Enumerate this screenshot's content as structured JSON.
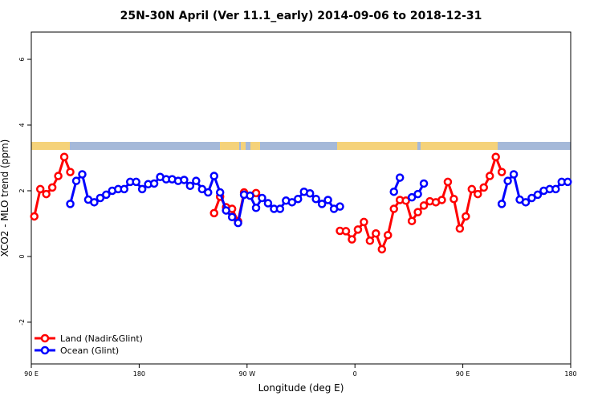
{
  "chart_data": {
    "type": "line",
    "title": "25N-30N April (Ver 11.1_early)   2014-09-06 to 2018-12-31",
    "x_label": "Longitude (deg E)",
    "y_label": "XCO2 - MLO trend (ppm)",
    "xlim": [
      90,
      540
    ],
    "ylim": [
      -3.27,
      6.83
    ],
    "xticks": [
      {
        "value": 90,
        "label": "90 E"
      },
      180,
      {
        "value": 270,
        "label": "90 W"
      },
      {
        "value": 360,
        "label": "0"
      },
      {
        "value": 450,
        "label": "90 E"
      },
      {
        "value": 540,
        "label": "180"
      }
    ],
    "yticks": [
      -2,
      0,
      2,
      4,
      6
    ],
    "legend": "bottom-left",
    "x": [
      92.5,
      97.5,
      102.5,
      107.5,
      112.5,
      117.5,
      122.5,
      127.5,
      132.5,
      137.5,
      142.5,
      147.5,
      152.5,
      157.5,
      162.5,
      167.5,
      172.5,
      177.5,
      182.5,
      187.5,
      192.5,
      197.5,
      202.5,
      207.5,
      212.5,
      217.5,
      222.5,
      227.5,
      232.5,
      237.5,
      242.5,
      247.5,
      252.5,
      257.5,
      262.5,
      267.5,
      272.5,
      277.5,
      282.5,
      287.5,
      292.5,
      297.5,
      302.5,
      307.5,
      312.5,
      317.5,
      322.5,
      327.5,
      332.5,
      337.5,
      342.5,
      347.5,
      352.5,
      357.5,
      362.5,
      367.5,
      372.5,
      377.5,
      382.5,
      387.5,
      392.5,
      397.5,
      402.5,
      407.5,
      412.5,
      417.5,
      422.5,
      427.5,
      432.5,
      437.5,
      442.5,
      447.5,
      452.5,
      457.5,
      462.5,
      467.5,
      472.5,
      477.5,
      482.5,
      487.5,
      492.5,
      497.5,
      502.5,
      507.5,
      512.5,
      517.5,
      522.5,
      527.5,
      532.5,
      537.5
    ],
    "series": [
      {
        "name": "Land (Nadir&Glint)",
        "color": "#ff0000",
        "values": [
          1.22,
          2.05,
          1.9,
          2.1,
          2.45,
          3.03,
          2.57,
          null,
          null,
          null,
          null,
          null,
          null,
          null,
          null,
          null,
          null,
          null,
          null,
          null,
          null,
          null,
          null,
          null,
          null,
          null,
          null,
          null,
          null,
          null,
          1.32,
          1.82,
          1.5,
          1.45,
          1.07,
          1.95,
          null,
          1.93,
          null,
          null,
          null,
          null,
          null,
          null,
          null,
          null,
          null,
          null,
          null,
          null,
          null,
          0.78,
          0.77,
          0.52,
          0.82,
          1.05,
          0.48,
          0.7,
          0.22,
          0.65,
          1.45,
          1.72,
          1.7,
          1.08,
          1.35,
          1.55,
          1.68,
          1.65,
          1.72,
          2.27,
          1.75,
          0.85,
          1.22,
          2.05,
          1.9,
          2.1,
          2.45,
          3.03,
          2.57,
          null,
          null,
          null,
          null,
          null,
          null,
          null,
          null,
          null,
          null,
          null
        ]
      },
      {
        "name": "Ocean (Glint)",
        "color": "#0000ff",
        "values": [
          null,
          null,
          null,
          null,
          null,
          null,
          1.6,
          2.3,
          2.5,
          1.73,
          1.65,
          1.78,
          1.88,
          2.0,
          2.05,
          2.05,
          2.27,
          2.27,
          2.05,
          2.2,
          2.22,
          2.42,
          2.35,
          2.35,
          2.3,
          2.33,
          2.15,
          2.3,
          2.05,
          1.95,
          2.45,
          1.95,
          1.4,
          1.2,
          1.02,
          1.88,
          1.85,
          1.48,
          1.78,
          1.62,
          1.45,
          1.45,
          1.7,
          1.65,
          1.75,
          1.97,
          1.92,
          1.75,
          1.6,
          1.72,
          1.45,
          1.52,
          null,
          null,
          null,
          null,
          null,
          null,
          null,
          null,
          1.97,
          2.4,
          null,
          1.8,
          1.9,
          2.22,
          null,
          null,
          null,
          null,
          null,
          null,
          null,
          null,
          null,
          null,
          null,
          null,
          1.6,
          2.3,
          2.5,
          1.73,
          1.65,
          1.78,
          1.88,
          2.0,
          2.05,
          2.05,
          2.27,
          2.27
        ]
      }
    ]
  }
}
